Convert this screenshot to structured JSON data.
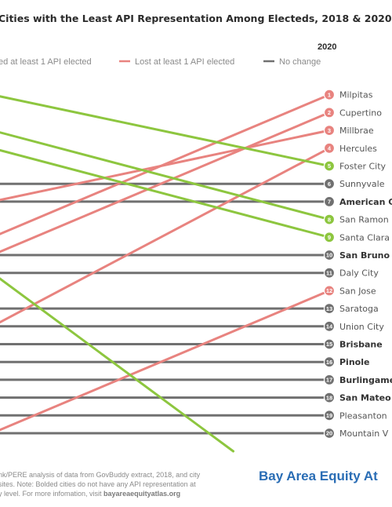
{
  "chart_data": {
    "type": "slope",
    "title": "Cities with the Least API Representation Among Electeds, 2018 & 2020",
    "x_labels": [
      "",
      "2020"
    ],
    "legend": [
      {
        "key": "gained",
        "label": "ed at least 1 API elected",
        "color": "#8dc63f"
      },
      {
        "key": "lost",
        "label": "Lost at least 1 API elected",
        "color": "#e8837f"
      },
      {
        "key": "nochange",
        "label": "No change",
        "color": "#707070"
      }
    ],
    "series": [
      {
        "rank_2020": 1,
        "city": "Milpitas",
        "bold": false,
        "change": "lost",
        "rank_2018": 9
      },
      {
        "rank_2020": 2,
        "city": "Cupertino",
        "bold": false,
        "change": "lost",
        "rank_2018": 10
      },
      {
        "rank_2020": 3,
        "city": "Millbrae",
        "bold": false,
        "change": "lost",
        "rank_2018": 7
      },
      {
        "rank_2020": 4,
        "city": "Hercules",
        "bold": false,
        "change": "lost",
        "rank_2018": 14
      },
      {
        "rank_2020": 5,
        "city": "Foster City",
        "bold": false,
        "change": "gained",
        "rank_2018": 1
      },
      {
        "rank_2020": 6,
        "city": "Sunnyvale",
        "bold": false,
        "change": "nochange",
        "rank_2018": 6
      },
      {
        "rank_2020": 7,
        "city": "American C",
        "bold": true,
        "change": "nochange",
        "rank_2018": 7
      },
      {
        "rank_2020": 8,
        "city": "San Ramon",
        "bold": false,
        "change": "gained",
        "rank_2018": 3
      },
      {
        "rank_2020": 9,
        "city": "Santa Clara",
        "bold": false,
        "change": "gained",
        "rank_2018": 4
      },
      {
        "rank_2020": 10,
        "city": "San Bruno",
        "bold": true,
        "change": "nochange",
        "rank_2018": 10
      },
      {
        "rank_2020": 11,
        "city": "Daly City",
        "bold": false,
        "change": "nochange",
        "rank_2018": 11
      },
      {
        "rank_2020": 12,
        "city": "San Jose",
        "bold": false,
        "change": "lost",
        "rank_2018": 20
      },
      {
        "rank_2020": 13,
        "city": "Saratoga",
        "bold": false,
        "change": "nochange",
        "rank_2018": 13
      },
      {
        "rank_2020": 14,
        "city": "Union City",
        "bold": false,
        "change": "nochange",
        "rank_2018": 14
      },
      {
        "rank_2020": 15,
        "city": "Brisbane",
        "bold": true,
        "change": "nochange",
        "rank_2018": 15
      },
      {
        "rank_2020": 16,
        "city": "Pinole",
        "bold": true,
        "change": "nochange",
        "rank_2018": 16
      },
      {
        "rank_2020": 17,
        "city": "Burlingame",
        "bold": true,
        "change": "nochange",
        "rank_2018": 17
      },
      {
        "rank_2020": 18,
        "city": "San Mateo",
        "bold": true,
        "change": "nochange",
        "rank_2018": 18
      },
      {
        "rank_2020": 19,
        "city": "Pleasanton",
        "bold": false,
        "change": "nochange",
        "rank_2018": 19
      },
      {
        "rank_2020": 20,
        "city": "Mountain V",
        "bold": false,
        "change": "nochange",
        "rank_2018": 20
      }
    ],
    "extra_lines": [
      {
        "change": "gained",
        "rank_2018": 11,
        "rank_2020": 25
      }
    ]
  },
  "footnote": {
    "line1": "nk/PERE analysis of data from GovBuddy extract, 2018, and city",
    "line2": "sites. Note: Bolded cities do not have any API representation at",
    "line3_prefix": "y level. For more infomation, visit ",
    "line3_link": "bayareaequityatlas.org"
  },
  "brand": "Bay Area Equity At"
}
